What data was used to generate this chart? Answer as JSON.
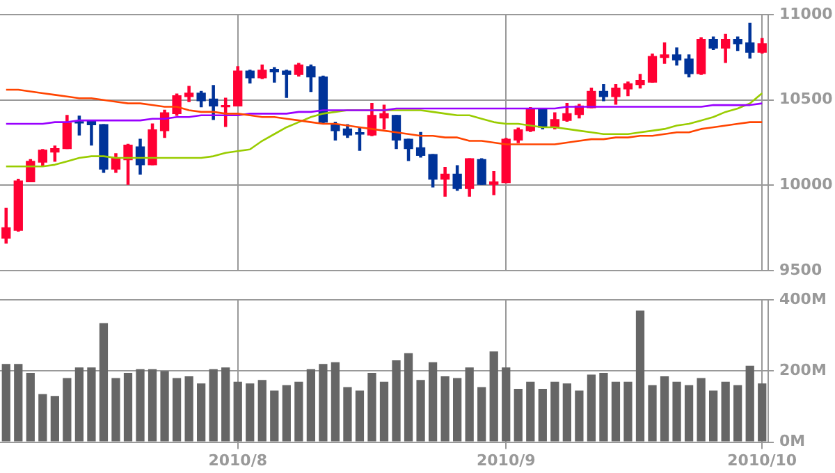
{
  "chart_data": [
    {
      "type": "candlestick",
      "categories": [
        null,
        null,
        null,
        null,
        null,
        null,
        null,
        null,
        null,
        null,
        null,
        null,
        null,
        null,
        null,
        null,
        null,
        null,
        null,
        "2010/8",
        null,
        null,
        null,
        null,
        null,
        null,
        null,
        null,
        null,
        null,
        null,
        null,
        null,
        null,
        null,
        null,
        null,
        null,
        null,
        null,
        null,
        "2010/9",
        null,
        null,
        null,
        null,
        null,
        null,
        null,
        null,
        null,
        null,
        null,
        null,
        null,
        null,
        null,
        null,
        null,
        null,
        null,
        null,
        "2010/10"
      ],
      "ohlc": [
        [
          9690,
          9865,
          9660,
          9750
        ],
        [
          9735,
          10035,
          9730,
          10025
        ],
        [
          10020,
          10150,
          10020,
          10140
        ],
        [
          10135,
          10210,
          10115,
          10205
        ],
        [
          10195,
          10230,
          10140,
          10215
        ],
        [
          10215,
          10410,
          10215,
          10365
        ],
        [
          10370,
          10405,
          10295,
          10365
        ],
        [
          10375,
          10375,
          10235,
          10355
        ],
        [
          10355,
          10355,
          10075,
          10095
        ],
        [
          10095,
          10185,
          10075,
          10160
        ],
        [
          10150,
          10240,
          10005,
          10235
        ],
        [
          10225,
          10270,
          10065,
          10120
        ],
        [
          10120,
          10360,
          10120,
          10325
        ],
        [
          10320,
          10440,
          10280,
          10425
        ],
        [
          10420,
          10535,
          10410,
          10525
        ],
        [
          10520,
          10580,
          10490,
          10540
        ],
        [
          10540,
          10550,
          10460,
          10495
        ],
        [
          10505,
          10585,
          10385,
          10465
        ],
        [
          10460,
          10510,
          10345,
          10465
        ],
        [
          10465,
          10695,
          10465,
          10670
        ],
        [
          10670,
          10675,
          10600,
          10630
        ],
        [
          10630,
          10705,
          10625,
          10675
        ],
        [
          10680,
          10690,
          10605,
          10665
        ],
        [
          10670,
          10675,
          10515,
          10650
        ],
        [
          10650,
          10715,
          10640,
          10705
        ],
        [
          10695,
          10705,
          10550,
          10635
        ],
        [
          10635,
          10640,
          10365,
          10370
        ],
        [
          10355,
          10370,
          10265,
          10320
        ],
        [
          10330,
          10355,
          10280,
          10295
        ],
        [
          10305,
          10340,
          10205,
          10300
        ],
        [
          10295,
          10480,
          10290,
          10410
        ],
        [
          10395,
          10470,
          10330,
          10420
        ],
        [
          10410,
          10410,
          10215,
          10265
        ],
        [
          10270,
          10270,
          10145,
          10215
        ],
        [
          10220,
          10310,
          10165,
          10175
        ],
        [
          10180,
          10180,
          9990,
          10035
        ],
        [
          10035,
          10105,
          9935,
          10065
        ],
        [
          10065,
          10115,
          9970,
          9980
        ],
        [
          9980,
          10155,
          9935,
          10155
        ],
        [
          10150,
          10155,
          10005,
          10005
        ],
        [
          10005,
          10080,
          9945,
          10020
        ],
        [
          10015,
          10275,
          10015,
          10270
        ],
        [
          10265,
          10335,
          10250,
          10325
        ],
        [
          10320,
          10455,
          10315,
          10450
        ],
        [
          10445,
          10445,
          10330,
          10340
        ],
        [
          10340,
          10425,
          10330,
          10385
        ],
        [
          10380,
          10480,
          10375,
          10420
        ],
        [
          10415,
          10475,
          10395,
          10465
        ],
        [
          10455,
          10570,
          10455,
          10550
        ],
        [
          10550,
          10590,
          10495,
          10520
        ],
        [
          10520,
          10590,
          10475,
          10570
        ],
        [
          10565,
          10605,
          10525,
          10595
        ],
        [
          10590,
          10650,
          10570,
          10615
        ],
        [
          10605,
          10770,
          10605,
          10755
        ],
        [
          10750,
          10835,
          10715,
          10765
        ],
        [
          10765,
          10805,
          10705,
          10735
        ],
        [
          10740,
          10765,
          10635,
          10655
        ],
        [
          10655,
          10865,
          10650,
          10855
        ],
        [
          10855,
          10870,
          10795,
          10805
        ],
        [
          10805,
          10885,
          10720,
          10855
        ],
        [
          10855,
          10870,
          10790,
          10830
        ],
        [
          10835,
          10950,
          10745,
          10780
        ],
        [
          10780,
          10860,
          10775,
          10830
        ]
      ],
      "colors": [
        "#ff0033",
        "#ff0033",
        "#ff0033",
        "#ff0033",
        "#ff0033",
        "#ff0033",
        "#003399",
        "#003399",
        "#003399",
        "#ff0033",
        "#ff0033",
        "#003399",
        "#ff0033",
        "#ff0033",
        "#ff0033",
        "#ff0033",
        "#003399",
        "#003399",
        "#ff0033",
        "#ff0033",
        "#003399",
        "#ff0033",
        "#003399",
        "#003399",
        "#ff0033",
        "#003399",
        "#003399",
        "#003399",
        "#003399",
        "#003399",
        "#ff0033",
        "#ff0033",
        "#003399",
        "#003399",
        "#003399",
        "#003399",
        "#ff0033",
        "#003399",
        "#ff0033",
        "#003399",
        "#ff0033",
        "#ff0033",
        "#ff0033",
        "#ff0033",
        "#003399",
        "#ff0033",
        "#ff0033",
        "#ff0033",
        "#ff0033",
        "#003399",
        "#ff0033",
        "#ff0033",
        "#ff0033",
        "#ff0033",
        "#ff0033",
        "#003399",
        "#003399",
        "#ff0033",
        "#003399",
        "#ff0033",
        "#003399",
        "#003399",
        "#ff0033"
      ],
      "series": [
        {
          "type": "line",
          "color": "#ff4400",
          "values": [
            10560,
            10560,
            10550,
            10540,
            10530,
            10520,
            10510,
            10510,
            10500,
            10490,
            10480,
            10480,
            10470,
            10460,
            10460,
            10440,
            10430,
            10430,
            10420,
            10420,
            10410,
            10400,
            10400,
            10390,
            10380,
            10370,
            10360,
            10360,
            10350,
            10340,
            10330,
            10320,
            10310,
            10300,
            10290,
            10290,
            10280,
            10280,
            10260,
            10260,
            10250,
            10240,
            10240,
            10240,
            10240,
            10240,
            10250,
            10260,
            10270,
            10270,
            10280,
            10280,
            10290,
            10290,
            10300,
            10310,
            10310,
            10330,
            10340,
            10350,
            10360,
            10370,
            10370
          ]
        },
        {
          "type": "line",
          "color": "#9900ff",
          "values": [
            10360,
            10360,
            10360,
            10360,
            10370,
            10370,
            10380,
            10380,
            10380,
            10380,
            10380,
            10380,
            10390,
            10390,
            10400,
            10400,
            10410,
            10410,
            10410,
            10410,
            10420,
            10420,
            10420,
            10420,
            10430,
            10430,
            10440,
            10440,
            10440,
            10440,
            10440,
            10440,
            10450,
            10450,
            10450,
            10450,
            10450,
            10450,
            10450,
            10450,
            10450,
            10450,
            10450,
            10450,
            10450,
            10450,
            10460,
            10460,
            10460,
            10460,
            10460,
            10460,
            10460,
            10460,
            10460,
            10460,
            10460,
            10460,
            10470,
            10470,
            10470,
            10470,
            10480
          ]
        },
        {
          "type": "line",
          "color": "#99cc00",
          "values": [
            10110,
            10110,
            10110,
            10110,
            10120,
            10140,
            10160,
            10170,
            10170,
            10160,
            10160,
            10160,
            10160,
            10160,
            10160,
            10160,
            10160,
            10170,
            10190,
            10200,
            10210,
            10260,
            10300,
            10340,
            10370,
            10400,
            10420,
            10430,
            10440,
            10440,
            10440,
            10440,
            10440,
            10440,
            10440,
            10430,
            10420,
            10410,
            10410,
            10390,
            10370,
            10360,
            10360,
            10350,
            10340,
            10340,
            10330,
            10320,
            10310,
            10300,
            10300,
            10300,
            10310,
            10320,
            10330,
            10350,
            10360,
            10380,
            10400,
            10430,
            10450,
            10480,
            10540
          ]
        }
      ],
      "ylim": [
        9500,
        11000
      ],
      "yticks": [
        9500,
        10000,
        10500,
        11000
      ],
      "grid": true,
      "tick_labels": "y"
    },
    {
      "type": "bar",
      "categories": [
        null,
        null,
        null,
        null,
        null,
        null,
        null,
        null,
        null,
        null,
        null,
        null,
        null,
        null,
        null,
        null,
        null,
        null,
        null,
        "2010/8",
        null,
        null,
        null,
        null,
        null,
        null,
        null,
        null,
        null,
        null,
        null,
        null,
        null,
        null,
        null,
        null,
        null,
        null,
        null,
        null,
        null,
        "2010/9",
        null,
        null,
        null,
        null,
        null,
        null,
        null,
        null,
        null,
        null,
        null,
        null,
        null,
        null,
        null,
        null,
        null,
        null,
        null,
        null,
        "2010/10"
      ],
      "values": [
        220,
        220,
        195,
        135,
        130,
        180,
        210,
        210,
        335,
        180,
        195,
        205,
        205,
        200,
        180,
        185,
        165,
        205,
        210,
        170,
        165,
        175,
        145,
        160,
        170,
        205,
        220,
        225,
        155,
        145,
        195,
        170,
        230,
        250,
        175,
        225,
        185,
        180,
        210,
        155,
        255,
        210,
        150,
        170,
        150,
        170,
        165,
        145,
        190,
        195,
        170,
        170,
        370,
        160,
        185,
        170,
        160,
        180,
        145,
        170,
        160,
        215,
        165
      ],
      "color": "#666666",
      "ylim": [
        0,
        400
      ],
      "yticks": [
        {
          "value": 0,
          "label": "0M"
        },
        {
          "value": 200,
          "label": "200M"
        },
        {
          "value": 400,
          "label": "400M"
        }
      ],
      "grid": true
    }
  ]
}
